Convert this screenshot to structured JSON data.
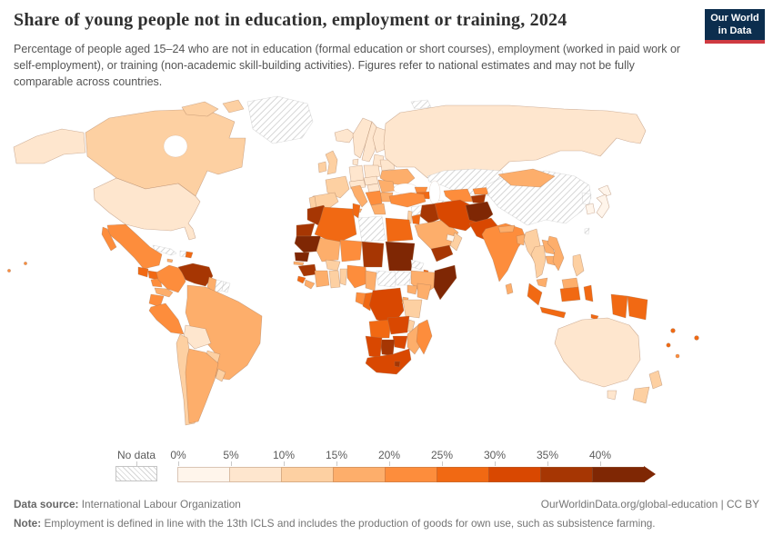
{
  "header": {
    "title": "Share of young people not in education, employment or training, 2024",
    "subtitle": "Percentage of people aged 15–24 who are not in education (formal education or short courses), employment (worked in paid work or self-employment), or training (non-academic skill-building activities). Figures refer to national estimates and may not be fully comparable across countries.",
    "logo": {
      "line1": "Our World",
      "line2": "in Data",
      "bg_color": "#0c2e4e",
      "stripe_color": "#cf3a41"
    }
  },
  "footer": {
    "datasource_label": "Data source:",
    "datasource": "International Labour Organization",
    "credit": "OurWorldinData.org/global-education | CC BY",
    "note_label": "Note:",
    "note": "Employment is defined in line with the 13th ICLS and includes the production of goods for own use, such as subsistence farming."
  },
  "chart_data": {
    "type": "choropleth_map",
    "title": "Share of young people not in education, employment or training, 2024",
    "unit": "%",
    "year": "2024",
    "no_data_label": "No data",
    "bin_edges": [
      "0%",
      "5%",
      "10%",
      "15%",
      "20%",
      "25%",
      "30%",
      "35%",
      "40%"
    ],
    "bin_ranges": [
      "0-5%",
      "5-10%",
      "10-15%",
      "15-20%",
      "20-25%",
      "25-30%",
      "30-35%",
      "35-40%",
      "40%+"
    ],
    "colors": [
      "#fff5eb",
      "#fee6ce",
      "#fdd0a2",
      "#fdae6b",
      "#fd8d3c",
      "#f16913",
      "#d94801",
      "#a63603",
      "#7f2704"
    ],
    "legend_position": "bottom",
    "countries": {
      "canada": {
        "name": "Canada",
        "bin": 2
      },
      "usa": {
        "name": "United States",
        "bin": 1
      },
      "greenland": {
        "name": "Greenland",
        "bin": null
      },
      "mexico": {
        "name": "Mexico",
        "bin": 4
      },
      "guatemala": {
        "name": "Guatemala",
        "bin": 5
      },
      "honduras": {
        "name": "Honduras",
        "bin": 5
      },
      "nicaragua": {
        "name": "Nicaragua",
        "bin": 4
      },
      "costarica_panama": {
        "name": "Costa Rica / Panama",
        "bin": 3
      },
      "cuba": {
        "name": "Cuba",
        "bin": null
      },
      "jamaica": {
        "name": "Jamaica",
        "bin": 3
      },
      "haiti": {
        "name": "Haiti",
        "bin": null
      },
      "dominicanrep": {
        "name": "Dominican Republic",
        "bin": 5
      },
      "colombia": {
        "name": "Colombia",
        "bin": 4
      },
      "venezuela": {
        "name": "Venezuela",
        "bin": 7
      },
      "guyana": {
        "name": "Guyana",
        "bin": 3
      },
      "suriname": {
        "name": "Suriname",
        "bin": null
      },
      "frenchguiana": {
        "name": "French Guiana",
        "bin": null
      },
      "ecuador": {
        "name": "Ecuador",
        "bin": 4
      },
      "peru": {
        "name": "Peru",
        "bin": 4
      },
      "brazil": {
        "name": "Brazil",
        "bin": 3
      },
      "bolivia": {
        "name": "Bolivia",
        "bin": 1
      },
      "paraguay": {
        "name": "Paraguay",
        "bin": 2
      },
      "chile": {
        "name": "Chile",
        "bin": 2
      },
      "argentina": {
        "name": "Argentina",
        "bin": 3
      },
      "uruguay": {
        "name": "Uruguay",
        "bin": 2
      },
      "iceland": {
        "name": "Iceland",
        "bin": 1
      },
      "norway": {
        "name": "Norway",
        "bin": 1
      },
      "sweden": {
        "name": "Sweden",
        "bin": 1
      },
      "finland": {
        "name": "Finland",
        "bin": 1
      },
      "baltics": {
        "name": "Baltic states",
        "bin": 1
      },
      "uk": {
        "name": "United Kingdom",
        "bin": 2
      },
      "ireland": {
        "name": "Ireland",
        "bin": 2
      },
      "denmark": {
        "name": "Denmark",
        "bin": 1
      },
      "germany": {
        "name": "Germany",
        "bin": 1
      },
      "poland": {
        "name": "Poland",
        "bin": 1
      },
      "belarus": {
        "name": "Belarus",
        "bin": 1
      },
      "ukraine": {
        "name": "Ukraine",
        "bin": 3
      },
      "france": {
        "name": "France",
        "bin": 2
      },
      "spain": {
        "name": "Spain",
        "bin": 2
      },
      "portugal": {
        "name": "Portugal",
        "bin": 2
      },
      "italy": {
        "name": "Italy",
        "bin": 3
      },
      "switzerland_austria": {
        "name": "Switzerland / Austria",
        "bin": 1
      },
      "czech_slovakia": {
        "name": "Czechia / Slovakia",
        "bin": 1
      },
      "hungary": {
        "name": "Hungary",
        "bin": 1
      },
      "romania": {
        "name": "Romania",
        "bin": 3
      },
      "bulgaria": {
        "name": "Bulgaria",
        "bin": 3
      },
      "balkans": {
        "name": "Western Balkans",
        "bin": 4
      },
      "greece": {
        "name": "Greece",
        "bin": 3
      },
      "russia": {
        "name": "Russia",
        "bin": 1
      },
      "svalbard": {
        "name": "Svalbard",
        "bin": null
      },
      "georgia": {
        "name": "Georgia",
        "bin": 4
      },
      "armenia_azerbaijan": {
        "name": "Armenia / Azerbaijan",
        "bin": 5
      },
      "kazakhstan": {
        "name": "Kazakhstan",
        "bin": null
      },
      "uzbekistan": {
        "name": "Uzbekistan",
        "bin": 4
      },
      "turkmenistan": {
        "name": "Turkmenistan",
        "bin": null
      },
      "kyrgyzstan": {
        "name": "Kyrgyzstan",
        "bin": 4
      },
      "tajikistan": {
        "name": "Tajikistan",
        "bin": 7
      },
      "mongolia": {
        "name": "Mongolia",
        "bin": 3
      },
      "turkey": {
        "name": "Turkey",
        "bin": 4
      },
      "syria": {
        "name": "Syria",
        "bin": null
      },
      "lebanon_israel": {
        "name": "Lebanon / Israel",
        "bin": 2
      },
      "jordan": {
        "name": "Jordan",
        "bin": 5
      },
      "iraq": {
        "name": "Iraq",
        "bin": 7
      },
      "kuwait": {
        "name": "Kuwait",
        "bin": 3
      },
      "saudiarabia": {
        "name": "Saudi Arabia",
        "bin": 3
      },
      "yemen": {
        "name": "Yemen",
        "bin": 7
      },
      "oman": {
        "name": "Oman",
        "bin": 2
      },
      "uae": {
        "name": "United Arab Emirates",
        "bin": 0
      },
      "iran": {
        "name": "Iran",
        "bin": 6
      },
      "afghanistan": {
        "name": "Afghanistan",
        "bin": 8
      },
      "pakistan": {
        "name": "Pakistan",
        "bin": 6
      },
      "india": {
        "name": "India",
        "bin": 4
      },
      "nepal": {
        "name": "Nepal",
        "bin": 3
      },
      "bangladesh": {
        "name": "Bangladesh",
        "bin": 3
      },
      "srilanka": {
        "name": "Sri Lanka",
        "bin": 3
      },
      "myanmar": {
        "name": "Myanmar",
        "bin": 2
      },
      "thailand": {
        "name": "Thailand",
        "bin": 2
      },
      "laos": {
        "name": "Laos",
        "bin": 3
      },
      "cambodia": {
        "name": "Cambodia",
        "bin": 3
      },
      "vietnam": {
        "name": "Vietnam",
        "bin": 3
      },
      "malaysia": {
        "name": "Malaysia",
        "bin": 3
      },
      "indonesia": {
        "name": "Indonesia",
        "bin": 5
      },
      "timorleste": {
        "name": "Timor-Leste",
        "bin": 5
      },
      "philippines": {
        "name": "Philippines",
        "bin": 2
      },
      "china": {
        "name": "China",
        "bin": null
      },
      "northkorea": {
        "name": "North Korea",
        "bin": null
      },
      "southkorea": {
        "name": "South Korea",
        "bin": 0
      },
      "japan": {
        "name": "Japan",
        "bin": 0
      },
      "taiwan": {
        "name": "Taiwan",
        "bin": null
      },
      "papuanewguinea": {
        "name": "Papua New Guinea",
        "bin": 5
      },
      "australia": {
        "name": "Australia",
        "bin": 1
      },
      "newzealand": {
        "name": "New Zealand",
        "bin": 2
      },
      "fiji": {
        "name": "Fiji",
        "bin": 5
      },
      "vanuatu": {
        "name": "Vanuatu",
        "bin": 5
      },
      "solomonislands": {
        "name": "Solomon Islands",
        "bin": 5
      },
      "newcaledonia": {
        "name": "New Caledonia",
        "bin": 4
      },
      "morocco": {
        "name": "Morocco",
        "bin": 7
      },
      "westernsahara": {
        "name": "Western Sahara",
        "bin": 7
      },
      "algeria": {
        "name": "Algeria",
        "bin": 5
      },
      "tunisia": {
        "name": "Tunisia",
        "bin": 5
      },
      "libya": {
        "name": "Libya",
        "bin": null
      },
      "egypt": {
        "name": "Egypt",
        "bin": 5
      },
      "mauritania": {
        "name": "Mauritania",
        "bin": 8
      },
      "mali": {
        "name": "Mali",
        "bin": 3
      },
      "niger": {
        "name": "Niger",
        "bin": 4
      },
      "chad": {
        "name": "Chad",
        "bin": 7
      },
      "sudan": {
        "name": "Sudan",
        "bin": 8
      },
      "eritrea": {
        "name": "Eritrea",
        "bin": null
      },
      "djibouti": {
        "name": "Djibouti",
        "bin": 5
      },
      "ethiopia": {
        "name": "Ethiopia",
        "bin": 3
      },
      "somalia": {
        "name": "Somalia",
        "bin": 8
      },
      "senegal": {
        "name": "Senegal",
        "bin": 8
      },
      "gambia": {
        "name": "Gambia",
        "bin": 3
      },
      "guinea": {
        "name": "Guinea",
        "bin": 7
      },
      "sierraleone": {
        "name": "Sierra Leone",
        "bin": 5
      },
      "liberia": {
        "name": "Liberia",
        "bin": 3
      },
      "cotedivoire": {
        "name": "Cote d'Ivoire",
        "bin": 3
      },
      "burkinafaso": {
        "name": "Burkina Faso",
        "bin": 2
      },
      "ghana": {
        "name": "Ghana",
        "bin": 2
      },
      "togo_benin": {
        "name": "Togo / Benin",
        "bin": 2
      },
      "nigeria": {
        "name": "Nigeria",
        "bin": 4
      },
      "cameroon": {
        "name": "Cameroon",
        "bin": 3
      },
      "centralafricanrep": {
        "name": "Central African Republic",
        "bin": null
      },
      "southsudan": {
        "name": "South Sudan",
        "bin": null
      },
      "uganda": {
        "name": "Uganda",
        "bin": 3
      },
      "kenya": {
        "name": "Kenya",
        "bin": 3
      },
      "gabon": {
        "name": "Gabon",
        "bin": 4
      },
      "congo": {
        "name": "Congo",
        "bin": 5
      },
      "drcongo": {
        "name": "DR Congo",
        "bin": 6
      },
      "rwanda_burundi": {
        "name": "Rwanda / Burundi",
        "bin": 3
      },
      "tanzania": {
        "name": "Tanzania",
        "bin": 2
      },
      "angola": {
        "name": "Angola",
        "bin": 5
      },
      "zambia": {
        "name": "Zambia",
        "bin": 6
      },
      "malawi": {
        "name": "Malawi",
        "bin": 2
      },
      "mozambique": {
        "name": "Mozambique",
        "bin": 3
      },
      "zimbabwe": {
        "name": "Zimbabwe",
        "bin": 6
      },
      "botswana": {
        "name": "Botswana",
        "bin": 7
      },
      "namibia": {
        "name": "Namibia",
        "bin": 6
      },
      "southafrica": {
        "name": "South Africa",
        "bin": 6
      },
      "lesotho": {
        "name": "Lesotho",
        "bin": 7
      },
      "madagascar": {
        "name": "Madagascar",
        "bin": 4
      },
      "pacific_islands": {
        "name": "Pacific islands",
        "bin": 4
      }
    }
  }
}
